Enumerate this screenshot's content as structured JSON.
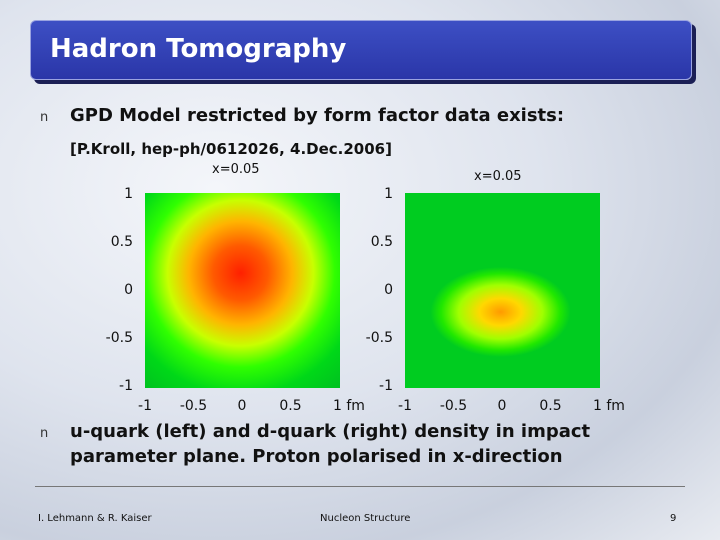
{
  "header": {
    "title": "Hadron Tomography"
  },
  "marker": "n",
  "bullets": [
    "GPD Model restricted by form factor data exists:",
    "u-quark (left) and d-quark (right) density in impact parameter plane. Proton polarised in x-direction"
  ],
  "reference": "[P.Kroll, hep-ph/0612026, 4.Dec.2006]",
  "plots": [
    {
      "title": "x=0.05",
      "yticks": [
        "1",
        "0.5",
        "0",
        "-0.5",
        "-1"
      ],
      "xticks": [
        "-1",
        "-0.5",
        "0",
        "0.5",
        "1 fm"
      ]
    },
    {
      "title": "x=0.05",
      "yticks": [
        "1",
        "0.5",
        "0",
        "-0.5",
        "-1"
      ],
      "xticks": [
        "-1",
        "-0.5",
        "0",
        "0.5",
        "1 fm"
      ]
    }
  ],
  "footer": {
    "left": "I. Lehmann & R. Kaiser",
    "center": "Nucleon Structure",
    "page": "9"
  }
}
